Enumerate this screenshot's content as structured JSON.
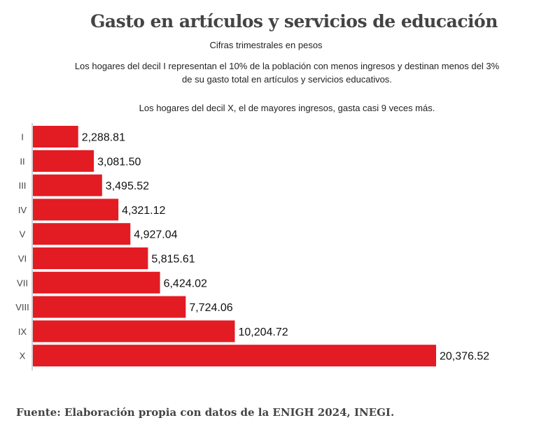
{
  "chart_data": {
    "type": "bar",
    "orientation": "horizontal",
    "title": "Gasto en artículos y servicios de educación",
    "subtitle": "Cifras trimestrales en pesos",
    "notes": [
      "Los hogares del decil I representan el 10% de la población con menos ingresos y destinan menos del 3%",
      "de su gasto total en artículos y servicios educativos.",
      "Los hogares del decil X, el de mayores ingresos, gasta casi 9 veces más."
    ],
    "categories": [
      "I",
      "II",
      "III",
      "IV",
      "V",
      "VI",
      "VII",
      "VIII",
      "IX",
      "X"
    ],
    "values": [
      2288.81,
      3081.5,
      3495.52,
      4321.12,
      4927.04,
      5815.61,
      6424.02,
      7724.06,
      10204.72,
      20376.52
    ],
    "value_labels": [
      "2,288.81",
      "3,081.50",
      "3,495.52",
      "4,321.12",
      "4,927.04",
      "5,815.61",
      "6,424.02",
      "7,724.06",
      "10,204.72",
      "20,376.52"
    ],
    "xlim": [
      0,
      20376.52
    ],
    "bar_color": "#e31b23",
    "source": "Fuente: Elaboración propia con datos de la ENIGH 2024, INEGI."
  }
}
